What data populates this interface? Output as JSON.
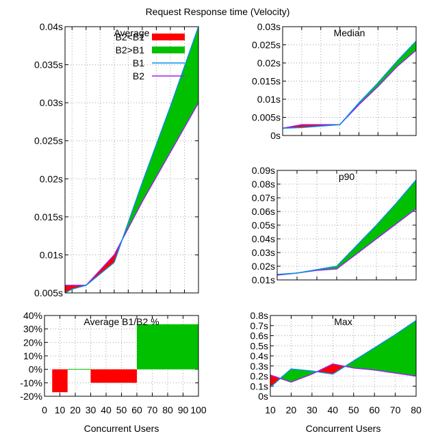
{
  "figure_title": "Request Response time (Velocity)",
  "colors": {
    "b2_gt_b1": "#ff0000",
    "b2_gt_b1_alt": "#00c000",
    "b1": "#0090e0",
    "b2": "#a020f0",
    "grid": "#a0a0a0"
  },
  "chart_data": [
    {
      "id": "average",
      "type": "area",
      "title": "Average",
      "xlabel": "",
      "ylabel": "",
      "xlim": [
        5,
        100
      ],
      "ylim": [
        0.005,
        0.04
      ],
      "xticks": [
        10,
        20,
        30,
        40,
        50,
        60,
        70,
        80,
        90,
        100
      ],
      "yticks": [
        0.005,
        0.01,
        0.015,
        0.02,
        0.025,
        0.03,
        0.035,
        0.04
      ],
      "ytick_labels": [
        "0.005s",
        "0.01s",
        "0.015s",
        "0.02s",
        "0.025s",
        "0.03s",
        "0.035s",
        "0.04s"
      ],
      "x": [
        5,
        10,
        20,
        40,
        60,
        80,
        100
      ],
      "series": [
        {
          "name": "B1",
          "values": [
            0.005,
            0.0055,
            0.006,
            0.009,
            0.0195,
            0.0295,
            0.04
          ]
        },
        {
          "name": "B2",
          "values": [
            0.006,
            0.006,
            0.006,
            0.01,
            0.017,
            0.0235,
            0.03
          ]
        }
      ],
      "fill_legend": [
        "B2<B1",
        "B2>B1"
      ],
      "legend": "top-right",
      "grid": true
    },
    {
      "id": "median",
      "type": "area",
      "title": "Median",
      "xlabel": "",
      "xlim": [
        10,
        80
      ],
      "ylim": [
        0,
        0.03
      ],
      "xticks": [
        10,
        20,
        30,
        40,
        50,
        60,
        70,
        80
      ],
      "yticks": [
        0,
        0.005,
        0.01,
        0.015,
        0.02,
        0.025,
        0.03
      ],
      "ytick_labels": [
        "0s",
        "0.005s",
        "0.01s",
        "0.015s",
        "0.02s",
        "0.025s",
        "0.03s"
      ],
      "x": [
        10,
        20,
        30,
        40,
        50,
        60,
        70,
        80
      ],
      "series": [
        {
          "name": "B1",
          "values": [
            0.002,
            0.0022,
            0.0026,
            0.003,
            0.009,
            0.0145,
            0.0205,
            0.026
          ]
        },
        {
          "name": "B2",
          "values": [
            0.002,
            0.003,
            0.003,
            0.003,
            0.0085,
            0.0135,
            0.019,
            0.0235
          ]
        }
      ],
      "grid": true
    },
    {
      "id": "p90",
      "type": "area",
      "title": "p90",
      "xlabel": "",
      "xlim": [
        10,
        80
      ],
      "ylim": [
        0.01,
        0.09
      ],
      "xticks": [
        10,
        20,
        30,
        40,
        50,
        60,
        70,
        80
      ],
      "yticks": [
        0.01,
        0.02,
        0.03,
        0.04,
        0.05,
        0.06,
        0.07,
        0.08,
        0.09
      ],
      "ytick_labels": [
        "0.01s",
        "0.02s",
        "0.03s",
        "0.04s",
        "0.05s",
        "0.06s",
        "0.07s",
        "0.08s",
        "0.09s"
      ],
      "x": [
        10,
        20,
        30,
        40,
        50,
        60,
        70,
        80
      ],
      "series": [
        {
          "name": "B1",
          "values": [
            0.014,
            0.015,
            0.0175,
            0.02,
            0.035,
            0.05,
            0.066,
            0.083
          ]
        },
        {
          "name": "B2",
          "values": [
            0.0135,
            0.015,
            0.017,
            0.018,
            0.029,
            0.04,
            0.051,
            0.062
          ]
        }
      ],
      "grid": true
    },
    {
      "id": "ratio",
      "type": "bar",
      "title": "Average B1/B2 %",
      "xlabel": "Concurrent Users",
      "xlim": [
        0,
        100
      ],
      "ylim": [
        -20,
        40
      ],
      "xticks": [
        0,
        10,
        20,
        30,
        40,
        50,
        60,
        70,
        80,
        90,
        100
      ],
      "yticks": [
        -20,
        -10,
        0,
        10,
        20,
        30,
        40
      ],
      "ytick_labels": [
        "-20%",
        "-10%",
        "0%",
        "10%",
        "20%",
        "30%",
        "40%"
      ],
      "bars": [
        {
          "x0": 5,
          "x1": 15,
          "value": -17
        },
        {
          "x0": 15,
          "x1": 30,
          "value": 0.3
        },
        {
          "x0": 30,
          "x1": 60,
          "value": -10
        },
        {
          "x0": 60,
          "x1": 100,
          "value": 33.5
        }
      ],
      "grid": true
    },
    {
      "id": "max",
      "type": "area",
      "title": "Max",
      "xlabel": "Concurrent Users",
      "xlim": [
        10,
        80
      ],
      "ylim": [
        0,
        0.8
      ],
      "xticks": [
        10,
        20,
        30,
        40,
        50,
        60,
        70,
        80
      ],
      "yticks": [
        0,
        0.1,
        0.2,
        0.3,
        0.4,
        0.5,
        0.6,
        0.7,
        0.8
      ],
      "ytick_labels": [
        "0s",
        "0.1s",
        "0.2s",
        "0.3s",
        "0.4s",
        "0.5s",
        "0.6s",
        "0.7s",
        "0.8s"
      ],
      "x": [
        10,
        20,
        30,
        40,
        50,
        60,
        70,
        80
      ],
      "series": [
        {
          "name": "B1",
          "values": [
            0.09,
            0.27,
            0.25,
            0.22,
            0.35,
            0.48,
            0.61,
            0.75
          ]
        },
        {
          "name": "B2",
          "values": [
            0.21,
            0.14,
            0.22,
            0.32,
            0.28,
            0.26,
            0.23,
            0.2
          ]
        }
      ],
      "grid": true
    }
  ]
}
